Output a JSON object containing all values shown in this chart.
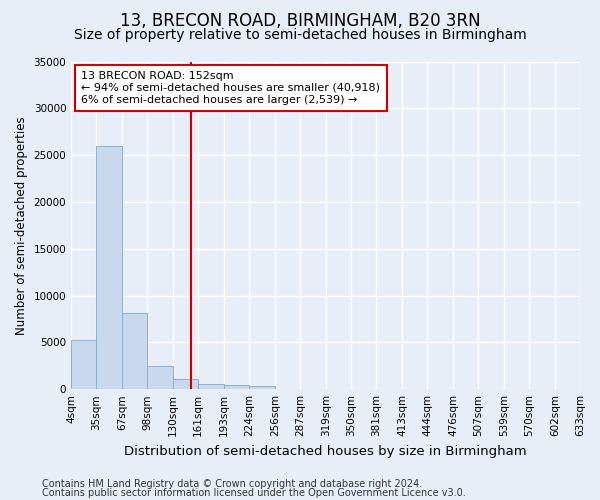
{
  "title1": "13, BRECON ROAD, BIRMINGHAM, B20 3RN",
  "title2": "Size of property relative to semi-detached houses in Birmingham",
  "xlabel": "Distribution of semi-detached houses by size in Birmingham",
  "ylabel": "Number of semi-detached properties",
  "footer1": "Contains HM Land Registry data © Crown copyright and database right 2024.",
  "footer2": "Contains public sector information licensed under the Open Government Licence v3.0.",
  "annotation_title": "13 BRECON ROAD: 152sqm",
  "annotation_line1": "← 94% of semi-detached houses are smaller (40,918)",
  "annotation_line2": "6% of semi-detached houses are larger (2,539) →",
  "bin_edges": [
    4,
    35,
    67,
    98,
    130,
    161,
    193,
    224,
    256,
    287,
    319,
    350,
    381,
    413,
    444,
    476,
    507,
    539,
    570,
    602,
    633
  ],
  "bin_labels": [
    "4sqm",
    "35sqm",
    "67sqm",
    "98sqm",
    "130sqm",
    "161sqm",
    "193sqm",
    "224sqm",
    "256sqm",
    "287sqm",
    "319sqm",
    "350sqm",
    "381sqm",
    "413sqm",
    "444sqm",
    "476sqm",
    "507sqm",
    "539sqm",
    "570sqm",
    "602sqm",
    "633sqm"
  ],
  "bar_values": [
    5300,
    26000,
    8100,
    2500,
    1100,
    550,
    400,
    300,
    0,
    0,
    0,
    0,
    0,
    0,
    0,
    0,
    0,
    0,
    0,
    0
  ],
  "bar_color": "#c8d9ee",
  "bar_edge_color": "#8ab0d4",
  "vline_color": "#cc0000",
  "vline_x": 152,
  "ylim": [
    0,
    35000
  ],
  "yticks": [
    0,
    5000,
    10000,
    15000,
    20000,
    25000,
    30000,
    35000
  ],
  "bg_color": "#e8eef8",
  "grid_color": "#ffffff",
  "annotation_box_facecolor": "#ffffff",
  "annotation_box_edgecolor": "#cc0000",
  "title1_fontsize": 12,
  "title2_fontsize": 10,
  "xlabel_fontsize": 9.5,
  "ylabel_fontsize": 8.5,
  "tick_fontsize": 7.5,
  "footer_fontsize": 7,
  "annotation_fontsize": 8
}
